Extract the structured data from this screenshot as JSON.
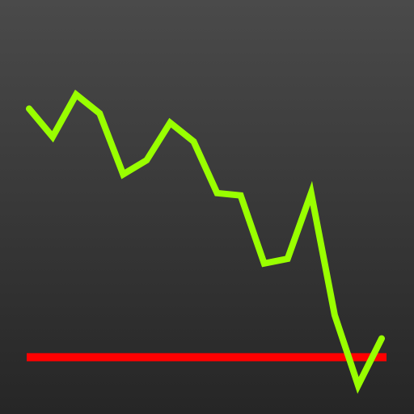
{
  "icon": {
    "name": "stock-chart-app-icon",
    "background_top": "#4a4a4a",
    "background_bottom": "#262626"
  },
  "line": {
    "color": "#99ff00",
    "trend": "down",
    "points": [
      [
        0,
        8.2
      ],
      [
        1,
        7.6
      ],
      [
        2,
        8.5
      ],
      [
        3,
        8.1
      ],
      [
        4,
        6.8
      ],
      [
        5,
        7.1
      ],
      [
        6,
        7.9
      ],
      [
        7,
        7.5
      ],
      [
        8,
        6.4
      ],
      [
        9,
        6.35
      ],
      [
        10,
        4.9
      ],
      [
        11,
        5.0
      ],
      [
        12,
        6.4
      ],
      [
        13,
        3.8
      ],
      [
        14,
        2.3
      ],
      [
        15,
        3.3
      ]
    ],
    "x_range": [
      0,
      15
    ],
    "y_range": [
      0,
      10
    ]
  },
  "reference": {
    "color": "#ff0000",
    "value": 2.9
  }
}
